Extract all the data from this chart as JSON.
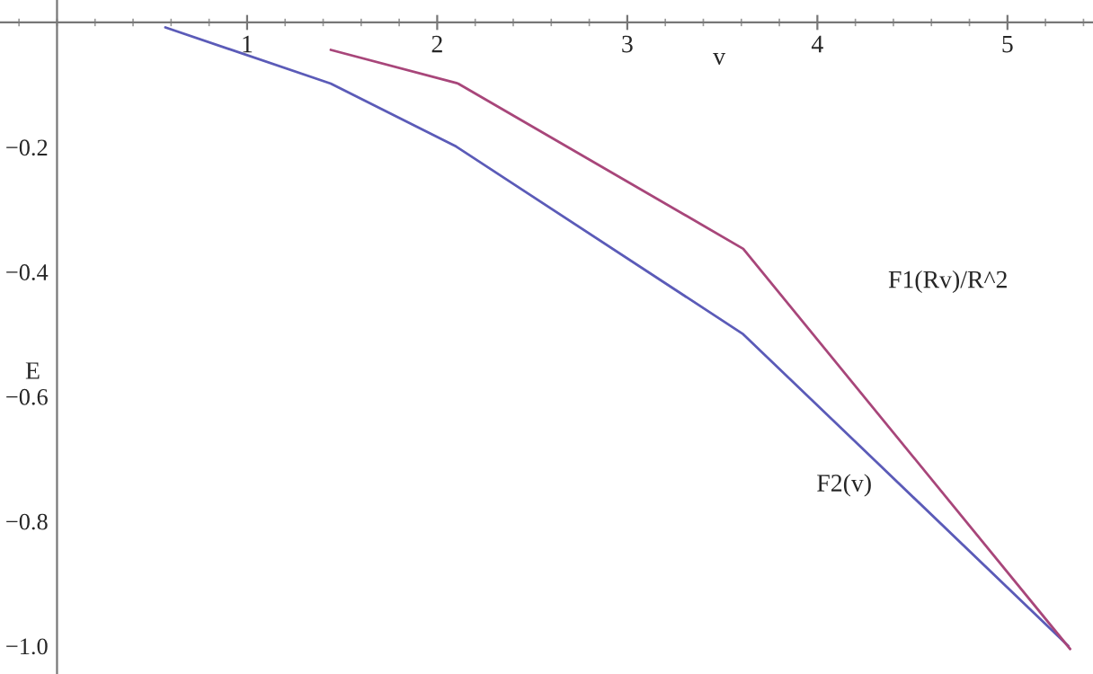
{
  "chart_data": {
    "type": "line",
    "xlabel": "v",
    "ylabel": "E",
    "series": [
      {
        "color": "#5b5bb8",
        "x": [
          0.57,
          1.44,
          2.1,
          3.61,
          5.32
        ],
        "values": [
          -0.008,
          -0.098,
          -0.199,
          -0.5,
          -1.0
        ]
      },
      {
        "color": "#a8467a",
        "x": [
          1.44,
          2.11,
          3.61,
          5.33
        ],
        "values": [
          -0.044,
          -0.098,
          -0.363,
          -1.005
        ]
      }
    ],
    "annotations": [
      "F1(Rv)/R^2",
      "F2(v)"
    ],
    "xlim": [
      -0.3,
      5.45
    ],
    "ylim": [
      -1.045,
      0.036
    ],
    "xticks": [
      1,
      2,
      3,
      4,
      5
    ],
    "yticks": [
      {
        "value": -0.2,
        "label": "−0.2"
      },
      {
        "value": -0.4,
        "label": "−0.4"
      },
      {
        "value": -0.6,
        "label": "−0.6"
      },
      {
        "value": -0.8,
        "label": "−0.8"
      },
      {
        "value": -1.0,
        "label": "−1.0"
      }
    ],
    "grid": false,
    "legend": false,
    "marker": "none",
    "line_style": "solid"
  }
}
